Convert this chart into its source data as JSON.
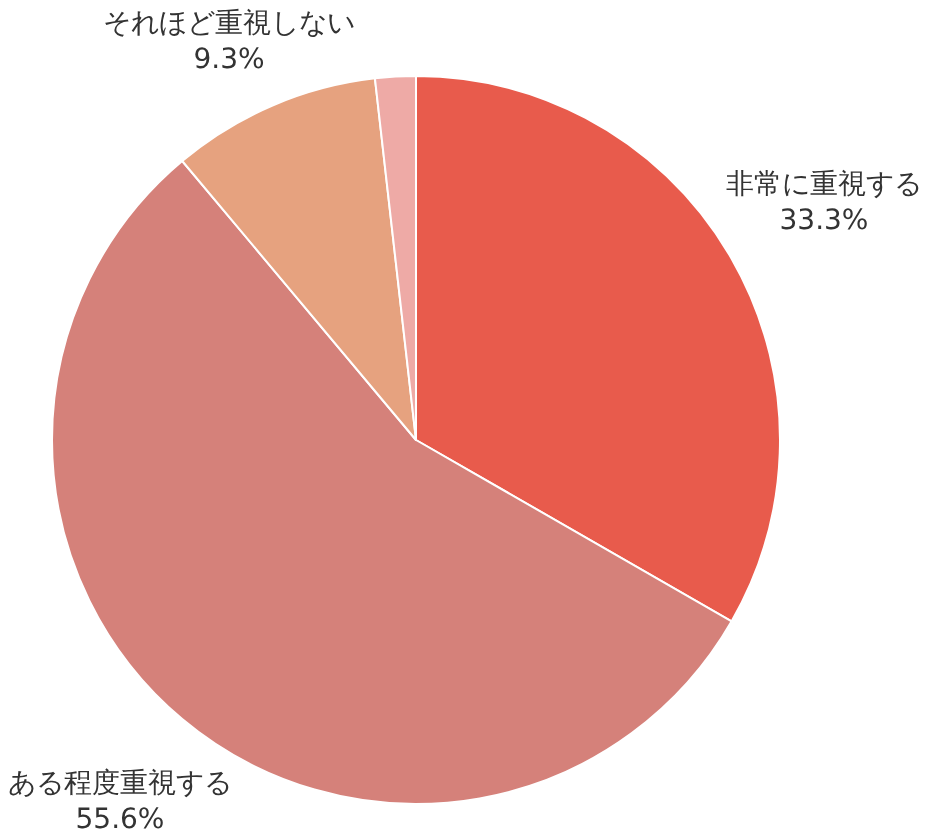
{
  "chart_data": {
    "type": "pie",
    "categories": [
      "非常に重視する",
      "ある程度重視する",
      "それほど重視しない",
      null
    ],
    "values": [
      33.3,
      55.6,
      9.3,
      1.8
    ],
    "colors": [
      "#e85b4c",
      "#d5817a",
      "#e6a27f",
      "#eeaaa6"
    ],
    "value_labels": [
      "33.3%",
      "55.6%",
      "9.3%",
      null
    ]
  }
}
